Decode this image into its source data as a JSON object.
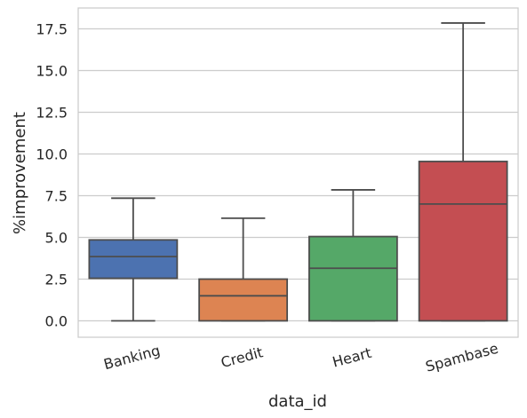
{
  "chart_data": {
    "type": "box",
    "xlabel": "data_id",
    "ylabel": "%improvement",
    "ylim": [
      -0.9,
      18.7
    ],
    "yticks": [
      0.0,
      2.5,
      5.0,
      7.5,
      10.0,
      12.5,
      15.0,
      17.5
    ],
    "ytick_labels": [
      "0.0",
      "2.5",
      "5.0",
      "7.5",
      "10.0",
      "12.5",
      "15.0",
      "17.5"
    ],
    "grid": "horizontal",
    "categories": [
      "Banking",
      "Credit",
      "Heart",
      "Spambase"
    ],
    "boxes": [
      {
        "category": "Banking",
        "min": 0.0,
        "q1": 2.55,
        "median": 3.85,
        "q3": 4.85,
        "max": 7.35,
        "color": "#4C72B0"
      },
      {
        "category": "Credit",
        "min": 0.0,
        "q1": 0.0,
        "median": 1.5,
        "q3": 2.5,
        "max": 6.15,
        "color": "#DD8452"
      },
      {
        "category": "Heart",
        "min": 0.0,
        "q1": 0.0,
        "median": 3.15,
        "q3": 5.05,
        "max": 7.85,
        "color": "#55A868"
      },
      {
        "category": "Spambase",
        "min": 0.0,
        "q1": 0.0,
        "median": 7.0,
        "q3": 9.55,
        "max": 17.85,
        "color": "#C44E52"
      }
    ]
  }
}
